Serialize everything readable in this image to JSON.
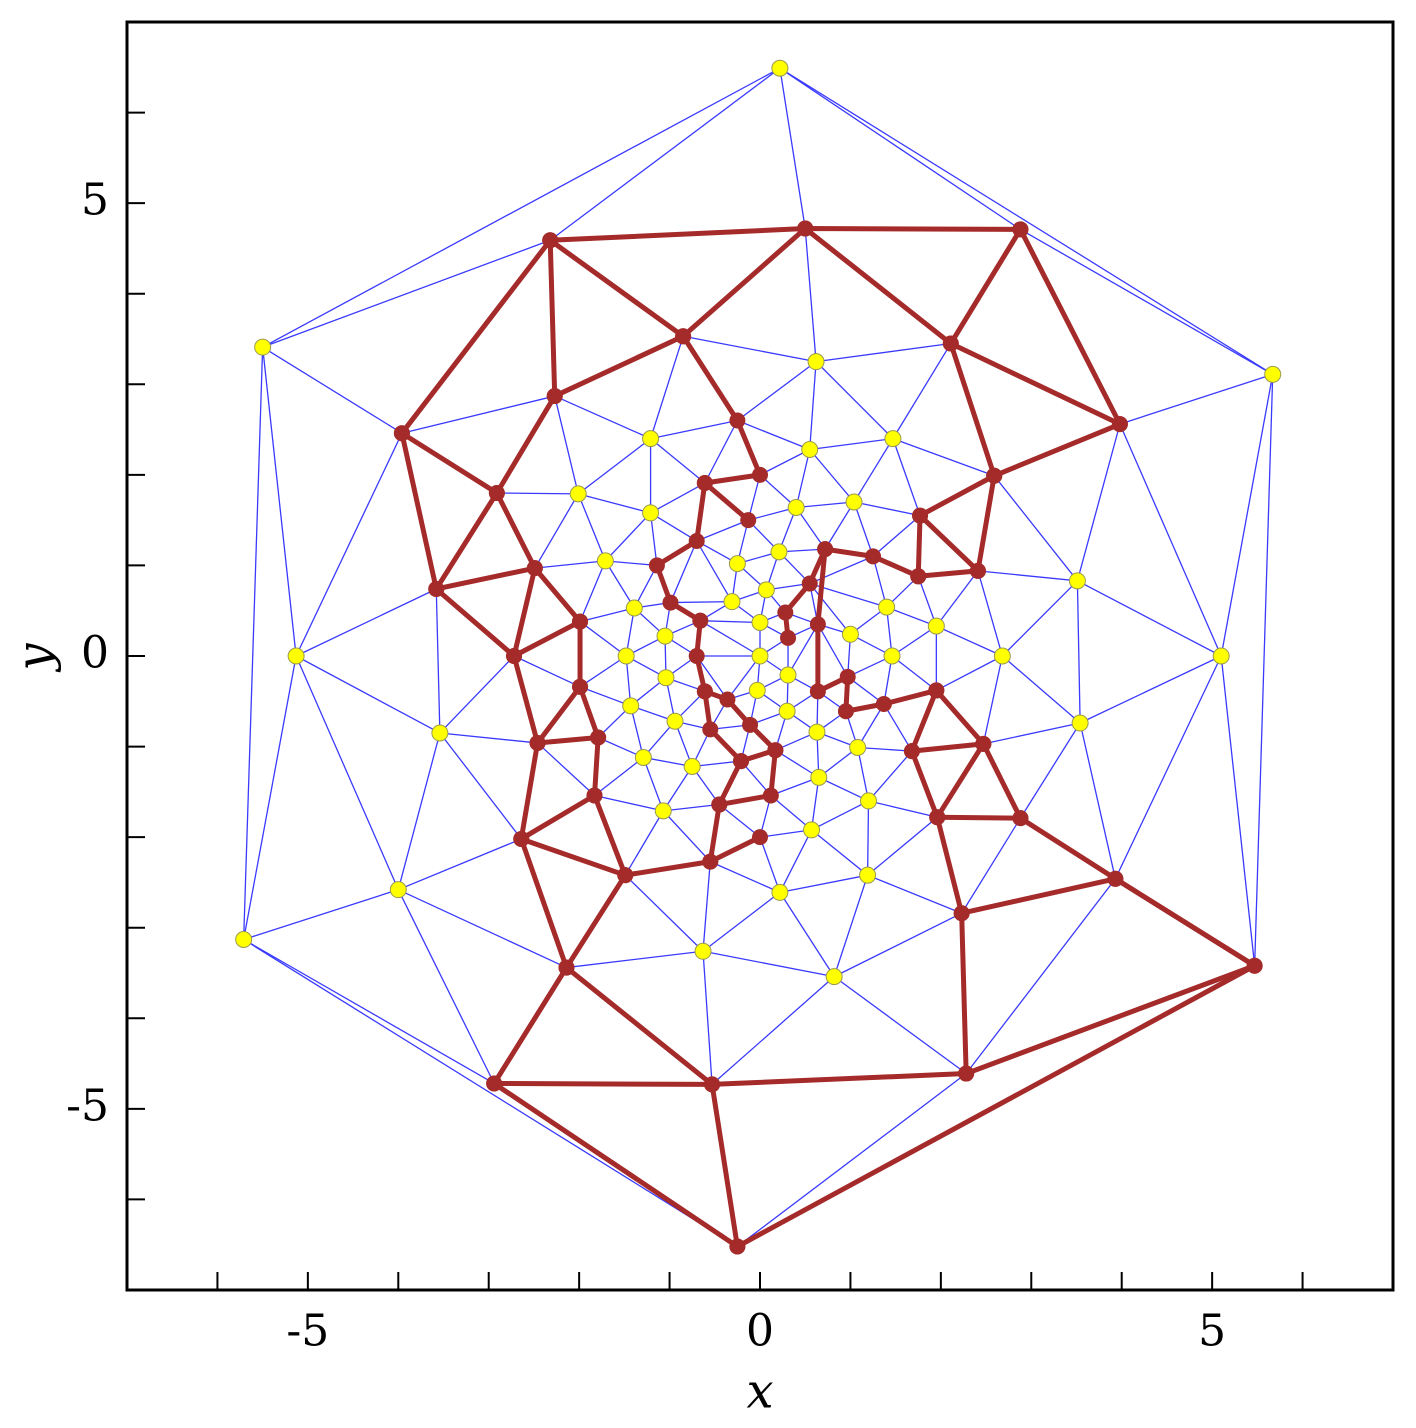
{
  "chart_data": {
    "type": "mesh",
    "x_label": "x",
    "y_label": "y",
    "xlim": [
      -7,
      7
    ],
    "ylim": [
      -7,
      7
    ],
    "xticks": [
      -5,
      0,
      5
    ],
    "yticks": [
      -5,
      0,
      5
    ],
    "xminorticks": [
      -6,
      -4,
      -3,
      -2,
      -1,
      1,
      2,
      3,
      4,
      6
    ],
    "yminorticks": [
      -6,
      -4,
      -3,
      -2,
      -1,
      1,
      2,
      3,
      4,
      6
    ],
    "mesh_color": "#3a3aff",
    "nodes": {
      "color": "#ffff00",
      "x": [
        0.22,
        -5.5,
        5.67,
        -5.13,
        5.1,
        -5.71,
        -4.0,
        -3.54,
        3.54,
        3.51,
        0.62,
        -1.21,
        0.55,
        1.47,
        -2.01,
        -1.21,
        0.4,
        1.04,
        -1.71,
        -0.25,
        0.21,
        -1.39,
        -0.31,
        0.07,
        1.4,
        -1.05,
        0,
        1.0,
        1.95,
        -1.48,
        0,
        1.46,
        2.68,
        -1.04,
        -0.03,
        0.31,
        -1.43,
        -0.94,
        0.3,
        0.63,
        -1.29,
        -0.75,
        1.08,
        0.65,
        1.2,
        -1.07,
        0.57,
        0.22,
        1.19,
        -0.63,
        0.82
      ],
      "y": [
        6.49,
        3.41,
        3.11,
        0,
        0,
        -3.13,
        -2.58,
        -0.85,
        -0.74,
        0.83,
        3.25,
        2.4,
        2.28,
        2.4,
        1.79,
        1.58,
        1.64,
        1.7,
        1.05,
        1.02,
        1.15,
        0.53,
        0.6,
        0.73,
        0.54,
        0.22,
        0.37,
        0.24,
        0.33,
        0,
        0,
        0,
        0,
        -0.24,
        -0.38,
        -0.21,
        -0.55,
        -0.72,
        -0.61,
        -0.84,
        -1.12,
        -1.22,
        -1.01,
        -1.34,
        -1.6,
        -1.71,
        -1.92,
        -2.61,
        -2.42,
        -3.26,
        -3.54
      ]
    },
    "paths": {
      "color": "#a52a2a",
      "lines": [
        {
          "x": [
            -3.96,
            -2.32,
            0.5,
            2.88,
            3.98,
            2.59,
            2.11,
            2.88
          ],
          "y": [
            2.46,
            4.59,
            4.72,
            4.71,
            2.56,
            1.99,
            3.45,
            4.71
          ]
        },
        {
          "x": [
            0.5,
            2.11,
            3.98
          ],
          "y": [
            4.72,
            3.45,
            2.56
          ]
        },
        {
          "x": [
            0.5,
            -0.85,
            -2.32,
            -2.27,
            -0.85,
            -0.25,
            0,
            -0.61,
            -0.13
          ],
          "y": [
            4.72,
            3.53,
            4.59,
            2.87,
            3.53,
            2.6,
            2.0,
            1.91,
            1.5
          ]
        },
        {
          "x": [
            -2.27,
            -2.91,
            -3.96,
            -3.58,
            -2.91,
            -2.49,
            -3.58,
            -2.72,
            -2.49,
            -1.99,
            -2.72,
            -2.46,
            -1.99,
            -1.99
          ],
          "y": [
            2.87,
            1.8,
            2.46,
            0.74,
            1.8,
            0.97,
            0.74,
            0,
            0.97,
            0.38,
            0,
            -0.96,
            -0.34,
            0.38
          ]
        },
        {
          "x": [
            -1.99,
            -1.79,
            -2.46,
            -2.64,
            -1.83,
            -1.79
          ],
          "y": [
            -0.34,
            -0.9,
            -0.96,
            -2.02,
            -1.54,
            -0.9
          ]
        },
        {
          "x": [
            -1.83,
            -1.49,
            -2.64,
            -2.14,
            -1.49,
            -0.55,
            0
          ],
          "y": [
            -1.54,
            -2.42,
            -2.02,
            -3.44,
            -2.42,
            -2.27,
            -2.0
          ]
        },
        {
          "x": [
            -0.55,
            -0.45,
            0.12,
            0.17,
            -0.21,
            -0.45
          ],
          "y": [
            -2.27,
            -1.64,
            -1.54,
            -1.04,
            -1.16,
            -1.64
          ]
        },
        {
          "x": [
            -2.94,
            -2.14,
            -0.53,
            -2.94,
            -0.25,
            -0.53,
            2.28,
            2.23,
            3.93,
            5.47,
            2.28
          ],
          "y": [
            -4.72,
            -3.44,
            -4.73,
            -4.72,
            -6.52,
            -4.73,
            -4.61,
            -2.84,
            -2.46,
            -3.42,
            -4.61
          ]
        },
        {
          "x": [
            -0.25,
            5.47,
            3.93,
            2.88,
            1.96,
            2.23
          ],
          "y": [
            -6.52,
            -3.42,
            -2.46,
            -1.79,
            -1.78,
            -2.84
          ]
        },
        {
          "x": [
            2.88,
            2.47,
            1.96,
            1.68,
            2.47,
            1.95,
            1.68
          ],
          "y": [
            -1.79,
            -0.97,
            -1.78,
            -1.05,
            -0.97,
            -0.38,
            -1.05
          ]
        },
        {
          "x": [
            2.59,
            2.41,
            1.77,
            2.59
          ],
          "y": [
            1.99,
            0.94,
            1.55,
            1.99
          ]
        },
        {
          "x": [
            1.77,
            1.75,
            2.41
          ],
          "y": [
            1.55,
            0.88,
            0.94
          ]
        },
        {
          "x": [
            1.75,
            1.25,
            0.72,
            0.55,
            0.28,
            0.31
          ],
          "y": [
            0.88,
            1.1,
            1.18,
            0.8,
            0.48,
            0.2
          ]
        },
        {
          "x": [
            0.72,
            0.64,
            0.64,
            0.97,
            0.95,
            1.37,
            1.95
          ],
          "y": [
            1.18,
            0.35,
            -0.39,
            -0.23,
            -0.61,
            -0.53,
            -0.38
          ]
        },
        {
          "x": [
            -0.61,
            -0.7,
            -1.14,
            -0.99,
            -0.66,
            -0.7,
            -0.61,
            -0.55,
            -0.21
          ],
          "y": [
            1.91,
            1.27,
            1.0,
            0.59,
            0.39,
            0,
            -0.39,
            -0.81,
            -1.16
          ]
        },
        {
          "x": [
            -0.61,
            -0.36,
            -0.11,
            0.17
          ],
          "y": [
            -0.39,
            -0.48,
            -0.76,
            -1.04
          ]
        }
      ]
    }
  }
}
